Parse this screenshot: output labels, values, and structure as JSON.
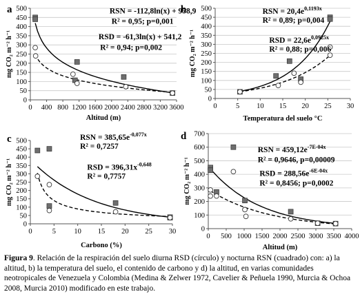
{
  "chart_data": [
    {
      "panel": "a",
      "type": "scatter",
      "xlabel": "Altitud (m)",
      "ylabel": "mg CO₂ m⁻² h⁻¹",
      "xlim": [
        0,
        3600
      ],
      "ylim": [
        0,
        500
      ],
      "xticks": [
        0,
        400,
        800,
        1200,
        1600,
        2000,
        2400,
        2800,
        3200,
        3600
      ],
      "yticks": [
        0,
        50,
        100,
        150,
        200,
        250,
        300,
        350,
        400,
        450,
        500
      ],
      "grid": true,
      "series": [
        {
          "name": "RSN",
          "marker": "square",
          "color": "#6e6e6e",
          "fit": "log",
          "a": -112.8,
          "b": 958.9,
          "x": [
            120,
            120,
            1150,
            1100,
            2300,
            3500
          ],
          "y": [
            450,
            440,
            207,
            107,
            125,
            37
          ]
        },
        {
          "name": "RSD",
          "marker": "circle",
          "color": "#ffffff",
          "fit": "log",
          "a": -61.3,
          "b": 541.2,
          "x": [
            120,
            130,
            1050,
            1150,
            2350,
            3500
          ],
          "y": [
            285,
            240,
            140,
            90,
            72,
            37
          ]
        }
      ],
      "annotations": [
        {
          "text": "RSN = -112,8ln(x) + 958,9",
          "x": 1950,
          "y": 472
        },
        {
          "text": "R² = 0,95; p=0,001",
          "x": 2000,
          "y": 415
        },
        {
          "text": "RSD = -61,3ln(x) + 541,2",
          "x": 1680,
          "y": 330
        },
        {
          "text": "R² = 0,94; p=0,002",
          "x": 1720,
          "y": 273
        }
      ]
    },
    {
      "panel": "b",
      "type": "scatter",
      "xlabel": "Temperatura del suelo °C",
      "ylabel": "mg CO₂ m⁻² h⁻¹",
      "xlim": [
        0,
        30
      ],
      "ylim": [
        0,
        500
      ],
      "xticks": [
        0,
        5,
        10,
        15,
        20,
        25,
        30
      ],
      "yticks": [
        0,
        50,
        100,
        150,
        200,
        250,
        300,
        350,
        400,
        450,
        500
      ],
      "grid": true,
      "series": [
        {
          "name": "RSN",
          "marker": "square",
          "color": "#6e6e6e",
          "fit": "exp",
          "a": 20.4,
          "k": 0.1193,
          "x": [
            5.5,
            13.5,
            16.5,
            19,
            25.5,
            25.5
          ],
          "y": [
            37,
            125,
            207,
            107,
            450,
            440
          ]
        },
        {
          "name": "RSD",
          "marker": "circle",
          "color": "#ffffff",
          "fit": "exp",
          "a": 22.6,
          "k": 0.0925,
          "x": [
            5.5,
            14,
            17.5,
            19,
            25.5,
            25.5
          ],
          "y": [
            37,
            72,
            140,
            90,
            285,
            240
          ]
        }
      ],
      "annotations": [
        {
          "text": "RSN = 20,4e",
          "sup": "0,1193x",
          "x": 10.5,
          "y": 470
        },
        {
          "text": "R² = 0,89; p=0,004",
          "x": 10.5,
          "y": 420
        },
        {
          "text": "RSD = 22,6e",
          "sup": "0,0925x",
          "x": 12,
          "y": 310
        },
        {
          "text": "R² = 0,88; p=0,006",
          "x": 12,
          "y": 260
        }
      ]
    },
    {
      "panel": "c",
      "type": "scatter",
      "xlabel": "Carbono (%)",
      "ylabel": "mg CO₂ m⁻² h⁻¹",
      "xlim": [
        0,
        30
      ],
      "ylim": [
        0,
        500
      ],
      "xticks": [
        0,
        5,
        10,
        15,
        20,
        25,
        30
      ],
      "yticks": [
        0,
        50,
        100,
        150,
        200,
        250,
        300,
        350,
        400,
        450,
        500
      ],
      "grid": false,
      "series": [
        {
          "name": "RSN",
          "marker": "square",
          "color": "#6e6e6e",
          "fit": "exp",
          "a": 385.65,
          "k": -0.077,
          "x": [
            1.5,
            4,
            4,
            18,
            29.5,
            29.5
          ],
          "y": [
            440,
            450,
            107,
            125,
            37,
            40
          ]
        },
        {
          "name": "RSD",
          "marker": "circle",
          "color": "#ffffff",
          "fit": "power",
          "a": 396.31,
          "k": -0.648,
          "x": [
            1.5,
            4,
            4,
            18,
            29.5
          ],
          "y": [
            285,
            235,
            80,
            72,
            37
          ]
        }
      ],
      "annotations": [
        {
          "text": "RSN = 385,65e",
          "sup": "-0,077x",
          "x": 10.5,
          "y": 505
        },
        {
          "text": "R² = 0,7257",
          "x": 10.5,
          "y": 450
        },
        {
          "text": "RSD = 396,31x",
          "sup": "-0,648",
          "x": 12,
          "y": 325
        },
        {
          "text": "R² = 0,7757",
          "x": 12,
          "y": 270
        }
      ]
    },
    {
      "panel": "d",
      "type": "scatter",
      "xlabel": "Altitud (m)",
      "ylabel": "mg CO₂ m⁻² h⁻¹",
      "xlim": [
        0,
        4000
      ],
      "ylim": [
        0,
        700
      ],
      "xticks": [
        0,
        500,
        1000,
        1500,
        2000,
        2500,
        3000,
        3500,
        4000
      ],
      "yticks": [
        0,
        100,
        200,
        300,
        400,
        500,
        600,
        700
      ],
      "grid": true,
      "series": [
        {
          "name": "RSN",
          "marker": "square",
          "color": "#6e6e6e",
          "fit": "exp",
          "a": 459.12,
          "k": -0.0007,
          "x": [
            60,
            60,
            230,
            700,
            1020,
            2300,
            3050,
            3550
          ],
          "y": [
            450,
            430,
            270,
            600,
            207,
            125,
            40,
            37
          ]
        },
        {
          "name": "RSD",
          "marker": "circle",
          "color": "#ffffff",
          "fit": "exp",
          "a": 288.56,
          "k": -0.0006,
          "x": [
            60,
            60,
            230,
            700,
            1020,
            1050,
            2300,
            3050,
            3550
          ],
          "y": [
            285,
            240,
            240,
            420,
            140,
            90,
            72,
            40,
            37
          ]
        }
      ],
      "annotations": [
        {
          "text": "RSN = 459,12e",
          "sup": "-7E-04x",
          "x": 1380,
          "y": 562
        },
        {
          "text": "R² = 0,9646, p=0,00009",
          "x": 1380,
          "y": 490
        },
        {
          "text": "RSD = 288,56e",
          "sup": "-6E-04x",
          "x": 1430,
          "y": 388
        },
        {
          "text": "R² = 0,8456; p=0,0002",
          "x": 1430,
          "y": 318
        }
      ]
    }
  ],
  "caption": {
    "label": "Figura",
    "number": "9",
    "text": ". Relación de la respiración del suelo diurna RSD (círculo) y nocturna RSN (cuadrado) con: a) la altitud, b) la temperatura del suelo, el contenido de carbono y d) la altitud, en varias comunidades neotropicales de Venezuela y Colombia (Medina & Zelwer 1972, Cavelier & Peñuela 1990, Murcia & Ochoa 2008, Murcia 2010) modificado en este trabajo."
  }
}
